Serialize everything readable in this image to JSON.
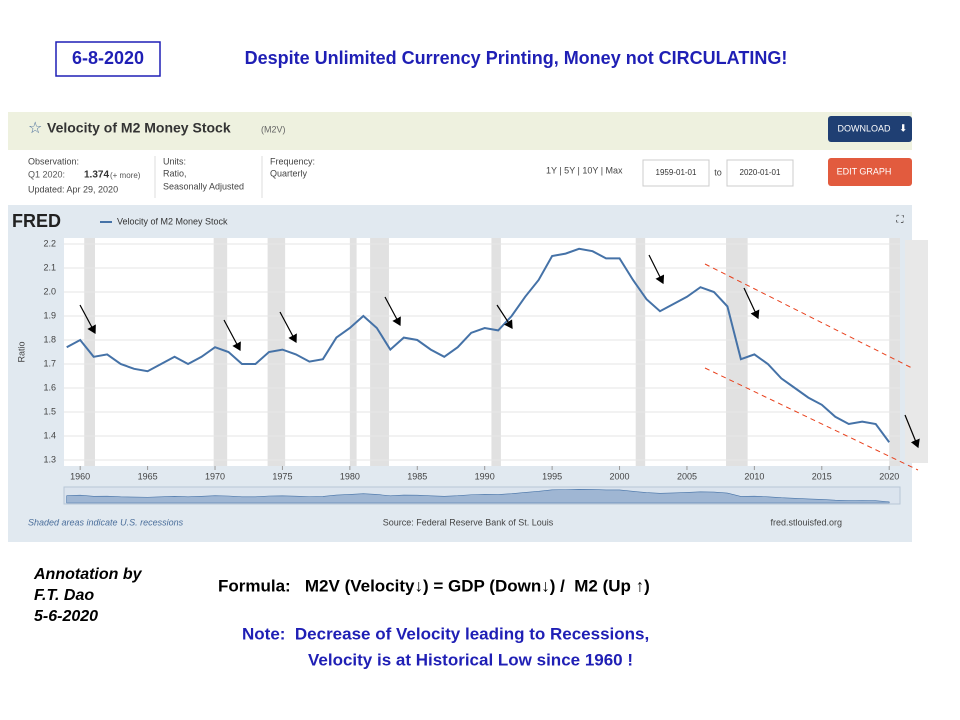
{
  "slide": {
    "date": "6-8-2020",
    "headline": "Despite Unlimited Currency Printing, Money not CIRCULATING!",
    "annotation": [
      "Annotation by",
      "F.T. Dao",
      "5-6-2020"
    ],
    "formula": "Formula:   M2V (Velocity↓) = GDP (Down↓) /  M2 (Up ↑)",
    "note": [
      "Note:  Decrease of Velocity leading to Recessions,",
      "Velocity is at Historical Low since 1960 !"
    ]
  },
  "fred": {
    "series_id": "(M2V)",
    "download": "DOWNLOAD",
    "observation_label": "Observation:",
    "observation_period": "Q1 2020:",
    "observation_value": "1.374",
    "observation_more": "(+ more)",
    "updated": "Updated: Apr 29, 2020",
    "units_label": "Units:",
    "units": [
      "Ratio,",
      "Seasonally Adjusted"
    ],
    "frequency_label": "Frequency:",
    "frequency": "Quarterly",
    "ranges": "1Y | 5Y | 10Y | Max",
    "start": "1959-01-01",
    "to": "to",
    "end": "2020-01-01",
    "edit": "EDIT GRAPH",
    "logo": "FRED",
    "recession_note": "Shaded areas indicate U.S. recessions",
    "source": "Source: Federal Reserve Bank of St. Louis",
    "url": "fred.stlouisfed.org"
  },
  "chart_data": {
    "type": "line",
    "title": "Velocity of M2 Money Stock",
    "y_label": "Ratio",
    "x": [
      1959,
      1960,
      1961,
      1962,
      1963,
      1964,
      1965,
      1966,
      1967,
      1968,
      1969,
      1970,
      1971,
      1972,
      1973,
      1974,
      1975,
      1976,
      1977,
      1978,
      1979,
      1980,
      1981,
      1982,
      1983,
      1984,
      1985,
      1986,
      1987,
      1988,
      1989,
      1990,
      1991,
      1992,
      1993,
      1994,
      1995,
      1996,
      1997,
      1998,
      1999,
      2000,
      2001,
      2002,
      2003,
      2004,
      2005,
      2006,
      2007,
      2008,
      2009,
      2010,
      2011,
      2012,
      2013,
      2014,
      2015,
      2016,
      2017,
      2018,
      2019,
      2020
    ],
    "series": [
      {
        "name": "Velocity of M2 Money Stock",
        "color": "#4572a7",
        "values": [
          1.77,
          1.8,
          1.73,
          1.74,
          1.7,
          1.68,
          1.67,
          1.7,
          1.73,
          1.7,
          1.73,
          1.77,
          1.75,
          1.7,
          1.7,
          1.75,
          1.76,
          1.74,
          1.71,
          1.72,
          1.81,
          1.85,
          1.9,
          1.85,
          1.76,
          1.81,
          1.8,
          1.76,
          1.73,
          1.77,
          1.83,
          1.85,
          1.84,
          1.9,
          1.98,
          2.05,
          2.15,
          2.16,
          2.18,
          2.17,
          2.14,
          2.14,
          2.05,
          1.97,
          1.92,
          1.95,
          1.98,
          2.02,
          2.0,
          1.94,
          1.72,
          1.74,
          1.7,
          1.64,
          1.6,
          1.56,
          1.53,
          1.48,
          1.45,
          1.46,
          1.45,
          1.374
        ]
      }
    ],
    "recessions": [
      [
        1960.3,
        1961.1
      ],
      [
        1969.9,
        1970.9
      ],
      [
        1973.9,
        1975.2
      ],
      [
        1980.0,
        1980.5
      ],
      [
        1981.5,
        1982.9
      ],
      [
        1990.5,
        1991.2
      ],
      [
        2001.2,
        2001.9
      ],
      [
        2007.9,
        2009.5
      ],
      [
        2020.0,
        2020.8
      ]
    ],
    "xlim": [
      1958.8,
      2020.8
    ],
    "xticks": [
      1960,
      1965,
      1970,
      1975,
      1980,
      1985,
      1990,
      1995,
      2000,
      2005,
      2010,
      2015,
      2020
    ],
    "ylim": [
      1.3,
      2.2
    ],
    "yticks": [
      1.3,
      1.4,
      1.5,
      1.6,
      1.7,
      1.8,
      1.9,
      {
        "value": 2.0,
        "label": "2.0"
      },
      2.1,
      2.2
    ],
    "grid": true
  }
}
